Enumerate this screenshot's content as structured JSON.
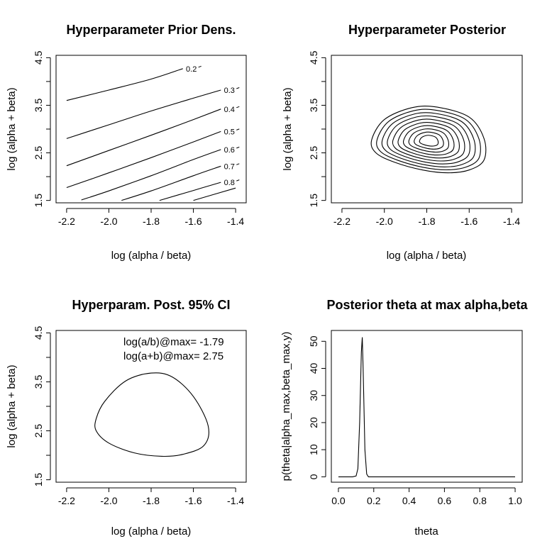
{
  "chart_data": [
    {
      "type": "contour",
      "title": "Hyperparameter Prior Dens.",
      "xlabel": "log (alpha / beta)",
      "ylabel": "log (alpha + beta)",
      "xlim": [
        -2.25,
        -1.35
      ],
      "ylim": [
        1.45,
        4.55
      ],
      "xticks": [
        "-2.2",
        "-2.0",
        "-1.8",
        "-1.6",
        "-1.4"
      ],
      "yticks": [
        "1.5",
        "2.5",
        "3.5",
        "4.5"
      ],
      "ytick_values": [
        1.5,
        2.5,
        3.5,
        4.5
      ],
      "xtick_values": [
        -2.2,
        -2.0,
        -1.8,
        -1.6,
        -1.4
      ],
      "contours": [
        {
          "level": "0.2",
          "points": [
            [
              -2.2,
              3.6
            ],
            [
              -2.0,
              3.82
            ],
            [
              -1.8,
              4.05
            ],
            [
              -1.65,
              4.27
            ]
          ]
        },
        {
          "level": "0.3",
          "points": [
            [
              -2.2,
              2.8
            ],
            [
              -2.0,
              3.09
            ],
            [
              -1.8,
              3.38
            ],
            [
              -1.6,
              3.65
            ],
            [
              -1.47,
              3.82
            ]
          ]
        },
        {
          "level": "0.4",
          "points": [
            [
              -2.2,
              2.23
            ],
            [
              -2.0,
              2.55
            ],
            [
              -1.8,
              2.87
            ],
            [
              -1.6,
              3.2
            ],
            [
              -1.47,
              3.42
            ]
          ]
        },
        {
          "level": "0.5",
          "points": [
            [
              -2.2,
              1.77
            ],
            [
              -2.0,
              2.08
            ],
            [
              -1.8,
              2.4
            ],
            [
              -1.6,
              2.73
            ],
            [
              -1.47,
              2.95
            ]
          ]
        },
        {
          "level": "0.6",
          "points": [
            [
              -2.13,
              1.51
            ],
            [
              -2.0,
              1.7
            ],
            [
              -1.8,
              2.02
            ],
            [
              -1.6,
              2.36
            ],
            [
              -1.47,
              2.57
            ]
          ]
        },
        {
          "level": "0.7",
          "points": [
            [
              -1.94,
              1.5
            ],
            [
              -1.8,
              1.7
            ],
            [
              -1.6,
              2.02
            ],
            [
              -1.47,
              2.22
            ]
          ]
        },
        {
          "level": "0.8",
          "points": [
            [
              -1.76,
              1.5
            ],
            [
              -1.6,
              1.71
            ],
            [
              -1.47,
              1.88
            ]
          ]
        },
        {
          "level": "",
          "points": [
            [
              -1.6,
              1.5
            ],
            [
              -1.4,
              1.76
            ]
          ]
        }
      ]
    },
    {
      "type": "contour",
      "title": "Hyperparameter Posterior",
      "xlabel": "log (alpha / beta)",
      "ylabel": "log (alpha + beta)",
      "xlim": [
        -2.25,
        -1.35
      ],
      "ylim": [
        1.45,
        4.55
      ],
      "xticks": [
        "-2.2",
        "-2.0",
        "-1.8",
        "-1.6",
        "-1.4"
      ],
      "yticks": [
        "1.5",
        "2.5",
        "3.5",
        "4.5"
      ],
      "ytick_values": [
        1.5,
        2.5,
        3.5,
        4.5
      ],
      "xtick_values": [
        -2.2,
        -2.0,
        -1.8,
        -1.6,
        -1.4
      ],
      "mode": [
        -1.79,
        2.75
      ],
      "outer_contour": [
        [
          -2.06,
          2.77
        ],
        [
          -2.0,
          3.2
        ],
        [
          -1.87,
          3.45
        ],
        [
          -1.75,
          3.46
        ],
        [
          -1.6,
          3.25
        ],
        [
          -1.53,
          2.8
        ],
        [
          -1.53,
          2.35
        ],
        [
          -1.6,
          2.14
        ],
        [
          -1.7,
          2.08
        ],
        [
          -1.82,
          2.14
        ],
        [
          -1.95,
          2.3
        ],
        [
          -2.04,
          2.5
        ]
      ],
      "levels": 10
    },
    {
      "type": "contour",
      "title": "Hyperparam. Post. 95% CI",
      "xlabel": "log (alpha / beta)",
      "ylabel": "log (alpha + beta)",
      "xlim": [
        -2.25,
        -1.35
      ],
      "ylim": [
        1.45,
        4.55
      ],
      "xticks": [
        "-2.2",
        "-2.0",
        "-1.8",
        "-1.6",
        "-1.4"
      ],
      "yticks": [
        "1.5",
        "2.5",
        "3.5",
        "4.5"
      ],
      "ytick_values": [
        1.5,
        2.5,
        3.5,
        4.5
      ],
      "xtick_values": [
        -2.2,
        -2.0,
        -1.8,
        -1.6,
        -1.4
      ],
      "annotations": [
        "log(a/b)@max= -1.79",
        "log(a+b)@max= 2.75"
      ],
      "ci_contour": [
        [
          -2.06,
          2.75
        ],
        [
          -2.02,
          3.1
        ],
        [
          -1.92,
          3.52
        ],
        [
          -1.8,
          3.68
        ],
        [
          -1.7,
          3.6
        ],
        [
          -1.6,
          3.2
        ],
        [
          -1.53,
          2.6
        ],
        [
          -1.55,
          2.2
        ],
        [
          -1.65,
          2.02
        ],
        [
          -1.75,
          1.98
        ],
        [
          -1.88,
          2.05
        ],
        [
          -2.0,
          2.25
        ],
        [
          -2.06,
          2.5
        ]
      ]
    },
    {
      "type": "line",
      "title": "Posterior theta at max alpha,beta",
      "xlabel": "theta",
      "ylabel": "p(theta|alpha_max,beta_max,y)",
      "xlim": [
        -0.04,
        1.04
      ],
      "ylim": [
        -2,
        54
      ],
      "xticks": [
        "0.0",
        "0.2",
        "0.4",
        "0.6",
        "0.8",
        "1.0"
      ],
      "xtick_values": [
        0,
        0.2,
        0.4,
        0.6,
        0.8,
        1.0
      ],
      "yticks": [
        "0",
        "10",
        "20",
        "30",
        "40",
        "50"
      ],
      "ytick_values": [
        0,
        10,
        20,
        30,
        40,
        50
      ],
      "x": [
        0.0,
        0.08,
        0.1,
        0.11,
        0.12,
        0.13,
        0.135,
        0.14,
        0.15,
        0.16,
        0.17,
        0.2,
        0.5,
        1.0
      ],
      "y": [
        0,
        0,
        0.3,
        3,
        20,
        46,
        51.5,
        40,
        10,
        1,
        0,
        0,
        0,
        0
      ]
    }
  ]
}
